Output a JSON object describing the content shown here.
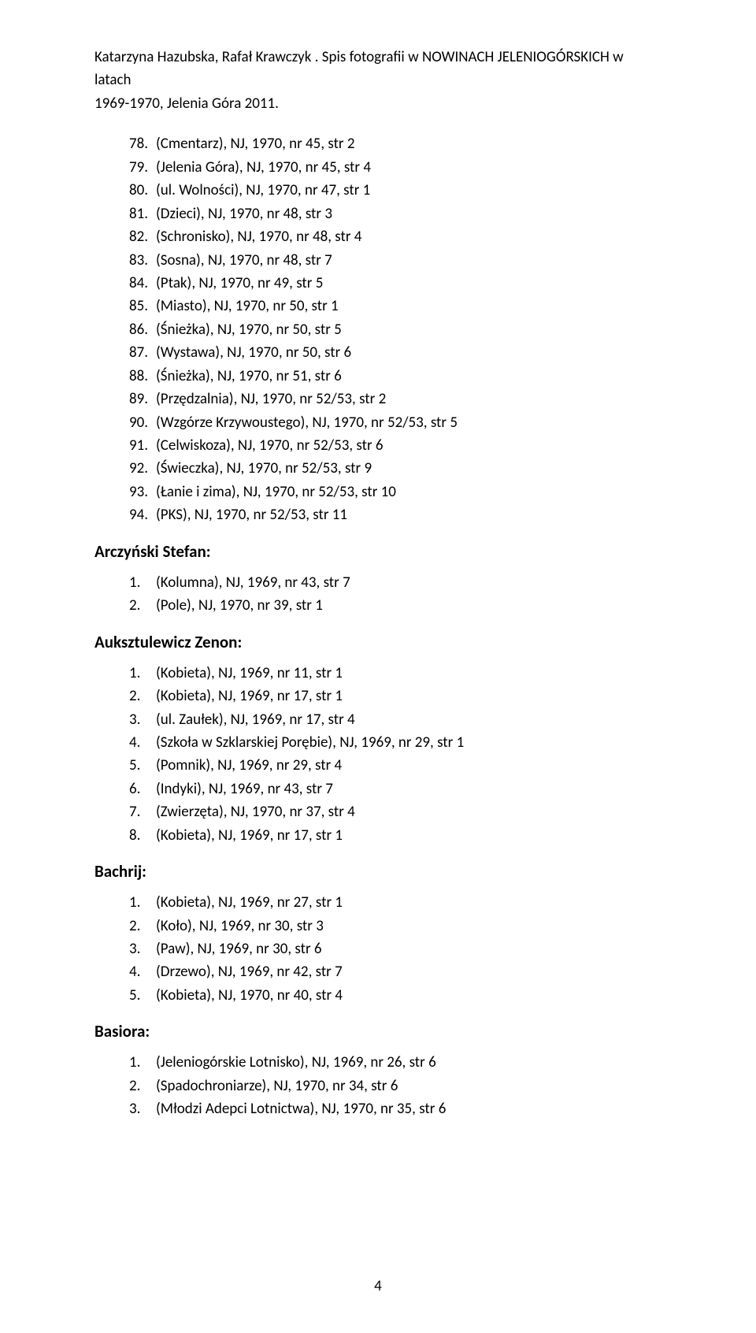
{
  "header": {
    "line1": "Katarzyna Hazubska,  Rafał Krawczyk . Spis fotografii  w NOWINACH JELENIOGÓRSKICH w latach",
    "line2": "1969-1970, Jelenia Góra 2011."
  },
  "topList": {
    "startNumber": 78,
    "items": [
      "(Cmentarz), NJ, 1970, nr 45, str 2",
      "(Jelenia Góra), NJ, 1970, nr 45, str 4",
      "(ul. Wolności), NJ, 1970, nr 47, str 1",
      "(Dzieci), NJ, 1970, nr 48, str 3",
      "(Schronisko), NJ, 1970, nr 48, str 4",
      "(Sosna), NJ, 1970, nr 48, str 7",
      "(Ptak), NJ, 1970, nr 49, str 5",
      "(Miasto), NJ, 1970, nr 50, str 1",
      "(Śnieżka), NJ, 1970, nr 50, str 5",
      "(Wystawa), NJ, 1970, nr 50, str 6",
      "(Śnieżka), NJ, 1970, nr 51, str 6",
      "(Przędzalnia), NJ, 1970, nr 52/53, str 2",
      "(Wzgórze Krzywoustego), NJ, 1970, nr 52/53, str 5",
      "(Celwiskoza), NJ, 1970, nr 52/53, str 6",
      "(Świeczka), NJ, 1970, nr 52/53, str 9",
      "(Łanie i zima), NJ, 1970, nr 52/53, str 10",
      "(PKS), NJ, 1970, nr 52/53, str 11"
    ]
  },
  "sections": [
    {
      "heading": "Arczyński Stefan:",
      "items": [
        "(Kolumna), NJ, 1969, nr 43, str 7",
        "(Pole), NJ, 1970, nr 39, str 1"
      ]
    },
    {
      "heading": "Auksztulewicz Zenon:",
      "items": [
        "(Kobieta), NJ, 1969, nr 11, str 1",
        "(Kobieta), NJ, 1969, nr 17, str 1",
        "(ul. Zaułek), NJ, 1969, nr 17, str 4",
        "(Szkoła w Szklarskiej Porębie), NJ, 1969, nr 29, str 1",
        "(Pomnik), NJ, 1969, nr 29, str 4",
        "(Indyki), NJ, 1969, nr 43, str 7",
        "(Zwierzęta), NJ, 1970, nr 37, str 4",
        "(Kobieta), NJ, 1969, nr 17, str 1"
      ]
    },
    {
      "heading": "Bachrij:",
      "items": [
        "(Kobieta), NJ, 1969, nr 27, str 1",
        "(Koło), NJ, 1969, nr 30, str 3",
        "(Paw), NJ, 1969, nr 30, str 6",
        "(Drzewo), NJ, 1969, nr 42, str 7",
        "(Kobieta), NJ, 1970, nr 40, str 4"
      ]
    },
    {
      "heading": "Basiora:",
      "items": [
        "(Jeleniogórskie Lotnisko), NJ, 1969, nr 26, str 6",
        "(Spadochroniarze), NJ, 1970, nr 34, str 6",
        "(Młodzi Adepci Lotnictwa), NJ, 1970, nr 35, str 6"
      ]
    }
  ],
  "pageNumber": "4"
}
